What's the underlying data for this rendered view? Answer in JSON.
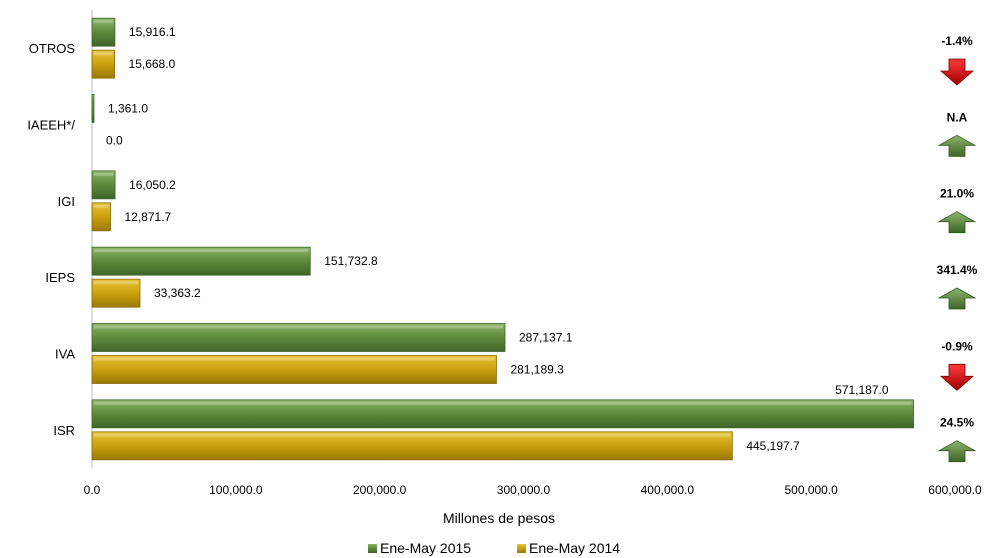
{
  "chart_data": {
    "type": "bar",
    "orientation": "horizontal",
    "categories": [
      "OTROS",
      "IAEEH*/",
      "IGI",
      "IEPS",
      "IVA",
      "ISR"
    ],
    "series": [
      {
        "name": "Ene-May 2015",
        "color": "#5e8a3c",
        "values": [
          15916.1,
          1361.0,
          16050.2,
          151732.8,
          287137.1,
          571187.0
        ],
        "labels": [
          "15,916.1",
          "1,361.0",
          "16,050.2",
          "151,732.8",
          "287,137.1",
          "571,187.0"
        ]
      },
      {
        "name": "Ene-May 2014",
        "color": "#c9a00e",
        "values": [
          15668.0,
          0.0,
          12871.7,
          33363.2,
          281189.3,
          445197.7
        ],
        "labels": [
          "15,668.0",
          "0.0",
          "12,871.7",
          "33,363.2",
          "281,189.3",
          "445,197.7"
        ]
      }
    ],
    "changes": [
      {
        "label": "-1.4%",
        "direction": "down"
      },
      {
        "label": "N.A",
        "direction": "up"
      },
      {
        "label": "21.0%",
        "direction": "up"
      },
      {
        "label": "341.4%",
        "direction": "up"
      },
      {
        "label": "-0.9%",
        "direction": "down"
      },
      {
        "label": "24.5%",
        "direction": "up"
      }
    ],
    "xlabel": "Millones de pesos",
    "xlim": [
      0,
      600000
    ],
    "xticks": [
      0,
      100000,
      200000,
      300000,
      400000,
      500000,
      600000
    ],
    "xtick_labels": [
      "0.0",
      "100,000.0",
      "200,000.0",
      "300,000.0",
      "400,000.0",
      "500,000.0",
      "600,000.0"
    ],
    "legend_position": "bottom",
    "grid": false,
    "arrow_colors": {
      "up": "#5e8a3c",
      "down": "#cc0000"
    }
  }
}
